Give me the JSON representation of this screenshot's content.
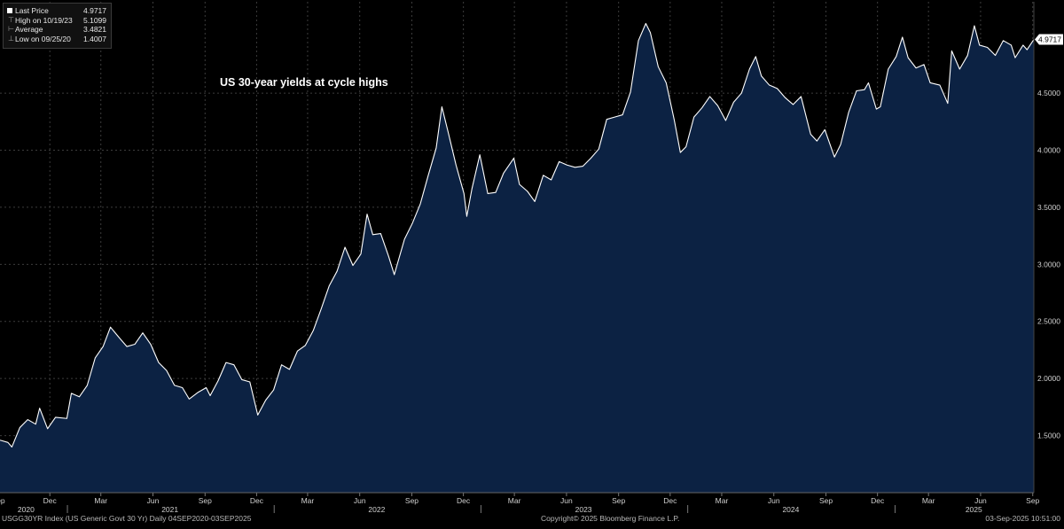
{
  "legend": {
    "items": [
      {
        "label": "Last Price",
        "value": "4.9717",
        "glyph": "square-swatch"
      },
      {
        "label": "High on 10/19/23",
        "value": "5.1099",
        "glyph": "tick-high"
      },
      {
        "label": "Average",
        "value": "3.4821",
        "glyph": "tick-average"
      },
      {
        "label": "Low on 09/25/20",
        "value": "1.4007",
        "glyph": "tick-low"
      }
    ]
  },
  "footer": {
    "left": "USGG30YR Index (US Generic Govt 30 Yr)  Daily 04SEP2020-03SEP2025",
    "center": "Copyright© 2025 Bloomberg Finance L.P.",
    "right": "03-Sep-2025 10:51:00"
  },
  "colors": {
    "background": "#000000",
    "area_fill": "#0c2243",
    "line": "#ffffff",
    "grid": "#3c3c3c",
    "last_price_tag_bg": "#ffffff",
    "last_price_tag_text": "#000000"
  },
  "chart_data": {
    "type": "area",
    "title": "",
    "annotation": "US 30-year yields at cycle highs",
    "xlabel": "",
    "ylabel": "",
    "y_axis_side": "right",
    "grid": true,
    "legend_placement": "top-left",
    "ylim": [
      1.0,
      5.3
    ],
    "yticks": [
      "1.5000",
      "2.0000",
      "2.5000",
      "3.0000",
      "3.5000",
      "4.0000",
      "4.5000"
    ],
    "ytick_values": [
      1.5,
      2.0,
      2.5,
      3.0,
      3.5,
      4.0,
      4.5
    ],
    "xlim": [
      "2020-09-04",
      "2025-09-03"
    ],
    "x_tick_months": [
      {
        "label": "Sep",
        "date": "2020-09-01"
      },
      {
        "label": "Dec",
        "date": "2020-12-01"
      },
      {
        "label": "Mar",
        "date": "2021-03-01"
      },
      {
        "label": "Jun",
        "date": "2021-06-01"
      },
      {
        "label": "Sep",
        "date": "2021-09-01"
      },
      {
        "label": "Dec",
        "date": "2021-12-01"
      },
      {
        "label": "Mar",
        "date": "2022-03-01"
      },
      {
        "label": "Jun",
        "date": "2022-06-01"
      },
      {
        "label": "Sep",
        "date": "2022-09-01"
      },
      {
        "label": "Dec",
        "date": "2022-12-01"
      },
      {
        "label": "Mar",
        "date": "2023-03-01"
      },
      {
        "label": "Jun",
        "date": "2023-06-01"
      },
      {
        "label": "Sep",
        "date": "2023-09-01"
      },
      {
        "label": "Dec",
        "date": "2023-12-01"
      },
      {
        "label": "Mar",
        "date": "2024-03-01"
      },
      {
        "label": "Jun",
        "date": "2024-06-01"
      },
      {
        "label": "Sep",
        "date": "2024-09-01"
      },
      {
        "label": "Dec",
        "date": "2024-12-01"
      },
      {
        "label": "Mar",
        "date": "2025-03-01"
      },
      {
        "label": "Jun",
        "date": "2025-06-01"
      },
      {
        "label": "Sep",
        "date": "2025-09-01"
      }
    ],
    "x_year_labels": [
      {
        "label": "2020",
        "date": "2020-10-20"
      },
      {
        "label": "2021",
        "date": "2021-07-01"
      },
      {
        "label": "2022",
        "date": "2022-07-01"
      },
      {
        "label": "2023",
        "date": "2023-07-01"
      },
      {
        "label": "2024",
        "date": "2024-07-01"
      },
      {
        "label": "2025",
        "date": "2025-05-20"
      }
    ],
    "last_price_label": "4.9717",
    "series": [
      {
        "points": [
          [
            "2020-09-04",
            1.46
          ],
          [
            "2020-09-18",
            1.44
          ],
          [
            "2020-09-25",
            1.4
          ],
          [
            "2020-10-09",
            1.57
          ],
          [
            "2020-10-23",
            1.64
          ],
          [
            "2020-11-06",
            1.6
          ],
          [
            "2020-11-13",
            1.74
          ],
          [
            "2020-11-27",
            1.56
          ],
          [
            "2020-12-11",
            1.66
          ],
          [
            "2020-12-31",
            1.65
          ],
          [
            "2021-01-08",
            1.87
          ],
          [
            "2021-01-22",
            1.84
          ],
          [
            "2021-02-05",
            1.94
          ],
          [
            "2021-02-19",
            2.18
          ],
          [
            "2021-03-05",
            2.28
          ],
          [
            "2021-03-18",
            2.45
          ],
          [
            "2021-04-02",
            2.36
          ],
          [
            "2021-04-16",
            2.28
          ],
          [
            "2021-04-30",
            2.3
          ],
          [
            "2021-05-14",
            2.4
          ],
          [
            "2021-05-28",
            2.3
          ],
          [
            "2021-06-11",
            2.14
          ],
          [
            "2021-06-25",
            2.07
          ],
          [
            "2021-07-09",
            1.94
          ],
          [
            "2021-07-23",
            1.92
          ],
          [
            "2021-08-04",
            1.82
          ],
          [
            "2021-08-20",
            1.88
          ],
          [
            "2021-09-03",
            1.92
          ],
          [
            "2021-09-10",
            1.85
          ],
          [
            "2021-09-24",
            1.98
          ],
          [
            "2021-10-08",
            2.14
          ],
          [
            "2021-10-22",
            2.12
          ],
          [
            "2021-11-05",
            1.99
          ],
          [
            "2021-11-19",
            1.97
          ],
          [
            "2021-12-03",
            1.68
          ],
          [
            "2021-12-17",
            1.81
          ],
          [
            "2021-12-31",
            1.9
          ],
          [
            "2022-01-14",
            2.12
          ],
          [
            "2022-01-28",
            2.08
          ],
          [
            "2022-02-11",
            2.24
          ],
          [
            "2022-02-25",
            2.29
          ],
          [
            "2022-03-11",
            2.42
          ],
          [
            "2022-03-25",
            2.61
          ],
          [
            "2022-04-08",
            2.81
          ],
          [
            "2022-04-22",
            2.94
          ],
          [
            "2022-05-06",
            3.15
          ],
          [
            "2022-05-20",
            2.99
          ],
          [
            "2022-06-03",
            3.09
          ],
          [
            "2022-06-14",
            3.44
          ],
          [
            "2022-06-24",
            3.26
          ],
          [
            "2022-07-08",
            3.27
          ],
          [
            "2022-07-22",
            3.07
          ],
          [
            "2022-08-01",
            2.91
          ],
          [
            "2022-08-19",
            3.22
          ],
          [
            "2022-09-02",
            3.36
          ],
          [
            "2022-09-16",
            3.53
          ],
          [
            "2022-09-30",
            3.78
          ],
          [
            "2022-10-14",
            4.02
          ],
          [
            "2022-10-24",
            4.38
          ],
          [
            "2022-11-04",
            4.16
          ],
          [
            "2022-11-18",
            3.87
          ],
          [
            "2022-12-02",
            3.62
          ],
          [
            "2022-12-07",
            3.42
          ],
          [
            "2022-12-16",
            3.66
          ],
          [
            "2022-12-30",
            3.96
          ],
          [
            "2023-01-13",
            3.62
          ],
          [
            "2023-01-27",
            3.63
          ],
          [
            "2023-02-10",
            3.8
          ],
          [
            "2023-02-28",
            3.93
          ],
          [
            "2023-03-10",
            3.7
          ],
          [
            "2023-03-24",
            3.64
          ],
          [
            "2023-04-06",
            3.55
          ],
          [
            "2023-04-21",
            3.78
          ],
          [
            "2023-05-05",
            3.74
          ],
          [
            "2023-05-19",
            3.9
          ],
          [
            "2023-06-02",
            3.87
          ],
          [
            "2023-06-16",
            3.85
          ],
          [
            "2023-06-30",
            3.86
          ],
          [
            "2023-07-14",
            3.93
          ],
          [
            "2023-07-28",
            4.01
          ],
          [
            "2023-08-11",
            4.27
          ],
          [
            "2023-08-25",
            4.29
          ],
          [
            "2023-09-08",
            4.31
          ],
          [
            "2023-09-22",
            4.51
          ],
          [
            "2023-10-06",
            4.96
          ],
          [
            "2023-10-19",
            5.11
          ],
          [
            "2023-10-27",
            5.03
          ],
          [
            "2023-11-10",
            4.73
          ],
          [
            "2023-11-24",
            4.59
          ],
          [
            "2023-12-08",
            4.27
          ],
          [
            "2023-12-19",
            3.98
          ],
          [
            "2023-12-29",
            4.03
          ],
          [
            "2024-01-12",
            4.29
          ],
          [
            "2024-01-26",
            4.37
          ],
          [
            "2024-02-09",
            4.47
          ],
          [
            "2024-02-23",
            4.39
          ],
          [
            "2024-03-08",
            4.26
          ],
          [
            "2024-03-22",
            4.42
          ],
          [
            "2024-04-05",
            4.5
          ],
          [
            "2024-04-19",
            4.71
          ],
          [
            "2024-04-30",
            4.82
          ],
          [
            "2024-05-10",
            4.65
          ],
          [
            "2024-05-24",
            4.57
          ],
          [
            "2024-06-07",
            4.54
          ],
          [
            "2024-06-21",
            4.46
          ],
          [
            "2024-07-05",
            4.4
          ],
          [
            "2024-07-19",
            4.47
          ],
          [
            "2024-08-05",
            4.14
          ],
          [
            "2024-08-16",
            4.08
          ],
          [
            "2024-08-30",
            4.18
          ],
          [
            "2024-09-16",
            3.94
          ],
          [
            "2024-09-27",
            4.05
          ],
          [
            "2024-10-11",
            4.33
          ],
          [
            "2024-10-25",
            4.52
          ],
          [
            "2024-11-08",
            4.53
          ],
          [
            "2024-11-15",
            4.59
          ],
          [
            "2024-11-29",
            4.36
          ],
          [
            "2024-12-06",
            4.38
          ],
          [
            "2024-12-20",
            4.71
          ],
          [
            "2025-01-03",
            4.82
          ],
          [
            "2025-01-14",
            4.99
          ],
          [
            "2025-01-24",
            4.81
          ],
          [
            "2025-02-07",
            4.72
          ],
          [
            "2025-02-21",
            4.75
          ],
          [
            "2025-03-04",
            4.59
          ],
          [
            "2025-03-21",
            4.57
          ],
          [
            "2025-04-04",
            4.41
          ],
          [
            "2025-04-11",
            4.87
          ],
          [
            "2025-04-25",
            4.71
          ],
          [
            "2025-05-09",
            4.83
          ],
          [
            "2025-05-21",
            5.09
          ],
          [
            "2025-05-30",
            4.92
          ],
          [
            "2025-06-13",
            4.9
          ],
          [
            "2025-06-27",
            4.83
          ],
          [
            "2025-07-11",
            4.96
          ],
          [
            "2025-07-25",
            4.92
          ],
          [
            "2025-08-01",
            4.81
          ],
          [
            "2025-08-15",
            4.92
          ],
          [
            "2025-08-22",
            4.88
          ],
          [
            "2025-09-03",
            4.97
          ]
        ]
      }
    ]
  }
}
